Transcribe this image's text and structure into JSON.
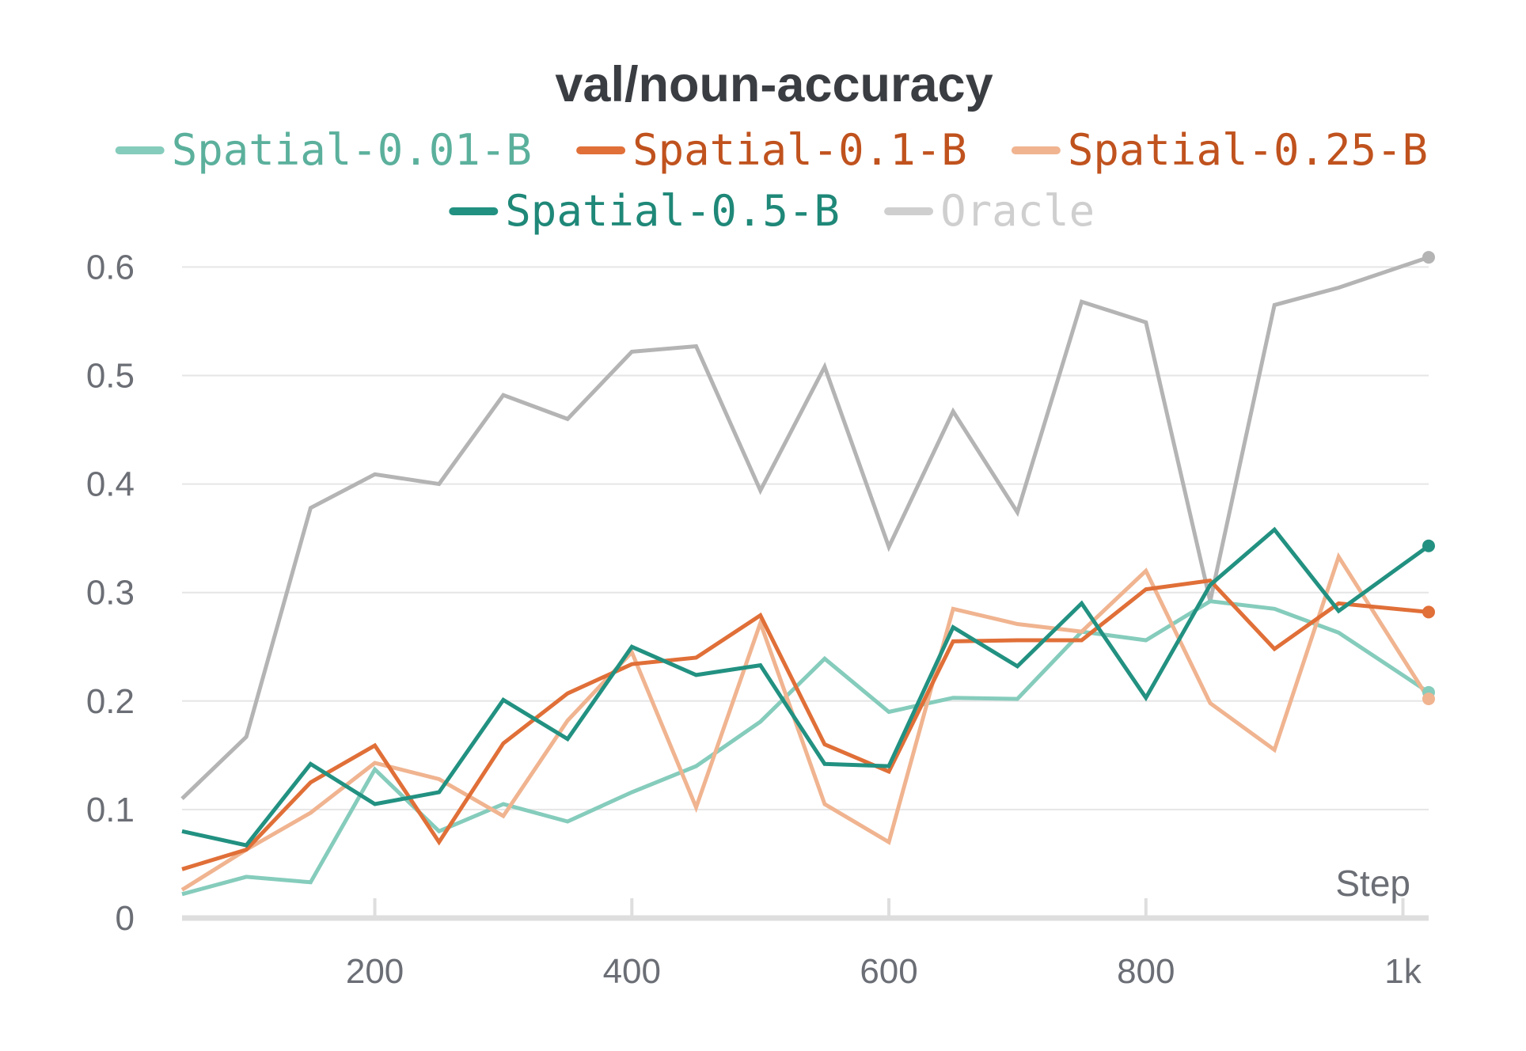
{
  "chart_data": {
    "type": "line",
    "title": "val/noun-accuracy",
    "xlabel": "Step",
    "ylabel": "",
    "xlim": [
      50,
      1020
    ],
    "ylim": [
      0,
      0.62
    ],
    "grid": true,
    "legend_position": "top",
    "x_ticks": [
      {
        "value": 200,
        "label": "200"
      },
      {
        "value": 400,
        "label": "400"
      },
      {
        "value": 600,
        "label": "600"
      },
      {
        "value": 800,
        "label": "800"
      },
      {
        "value": 1000,
        "label": "1k"
      }
    ],
    "y_ticks": [
      {
        "value": 0,
        "label": "0"
      },
      {
        "value": 0.1,
        "label": "0.1"
      },
      {
        "value": 0.2,
        "label": "0.2"
      },
      {
        "value": 0.3,
        "label": "0.3"
      },
      {
        "value": 0.4,
        "label": "0.4"
      },
      {
        "value": 0.5,
        "label": "0.5"
      },
      {
        "value": 0.6,
        "label": "0.6"
      }
    ],
    "x": [
      50,
      100,
      150,
      200,
      250,
      300,
      350,
      400,
      450,
      500,
      550,
      600,
      650,
      700,
      750,
      800,
      850,
      900,
      950,
      1020
    ],
    "series": [
      {
        "name": "Oracle",
        "color": "#b4b4b4",
        "legend_color": "#cfcfcf",
        "label_color": "#cfcfcf",
        "opacity": 1,
        "values": [
          0.11,
          0.167,
          0.378,
          0.409,
          0.4,
          0.482,
          0.46,
          0.522,
          0.527,
          0.394,
          0.508,
          0.342,
          0.467,
          0.374,
          0.568,
          0.549,
          0.292,
          0.565,
          0.581,
          0.609
        ]
      },
      {
        "name": "Spatial-0.01-B",
        "color": "#85ccbc",
        "legend_color": "#85ccbc",
        "label_color": "#5bb09c",
        "opacity": 1,
        "values": [
          0.022,
          0.038,
          0.033,
          0.137,
          0.08,
          0.105,
          0.089,
          0.116,
          0.14,
          0.181,
          0.239,
          0.19,
          0.203,
          0.202,
          0.264,
          0.256,
          0.292,
          0.285,
          0.263,
          0.208
        ]
      },
      {
        "name": "Spatial-0.25-B",
        "color": "#f0b490",
        "legend_color": "#f0b490",
        "label_color": "#c0521e",
        "opacity": 1,
        "values": [
          0.026,
          0.063,
          0.097,
          0.143,
          0.128,
          0.094,
          0.182,
          0.245,
          0.102,
          0.272,
          0.105,
          0.07,
          0.285,
          0.271,
          0.264,
          0.32,
          0.198,
          0.155,
          0.333,
          0.202
        ]
      },
      {
        "name": "Spatial-0.1-B",
        "color": "#e06f38",
        "legend_color": "#e06f38",
        "label_color": "#c0521e",
        "opacity": 1,
        "values": [
          0.045,
          0.063,
          0.125,
          0.159,
          0.07,
          0.161,
          0.207,
          0.234,
          0.24,
          0.279,
          0.16,
          0.135,
          0.255,
          0.256,
          0.256,
          0.303,
          0.311,
          0.248,
          0.29,
          0.282
        ]
      },
      {
        "name": "Spatial-0.5-B",
        "color": "#229181",
        "legend_color": "#229181",
        "label_color": "#1f8878",
        "opacity": 1,
        "values": [
          0.08,
          0.067,
          0.142,
          0.105,
          0.116,
          0.201,
          0.165,
          0.25,
          0.224,
          0.233,
          0.142,
          0.14,
          0.268,
          0.232,
          0.29,
          0.203,
          0.307,
          0.358,
          0.283,
          0.343
        ]
      }
    ],
    "legend_rows": [
      [
        "Spatial-0.01-B",
        "Spatial-0.1-B",
        "Spatial-0.25-B"
      ],
      [
        "Spatial-0.5-B",
        "Oracle"
      ]
    ]
  }
}
